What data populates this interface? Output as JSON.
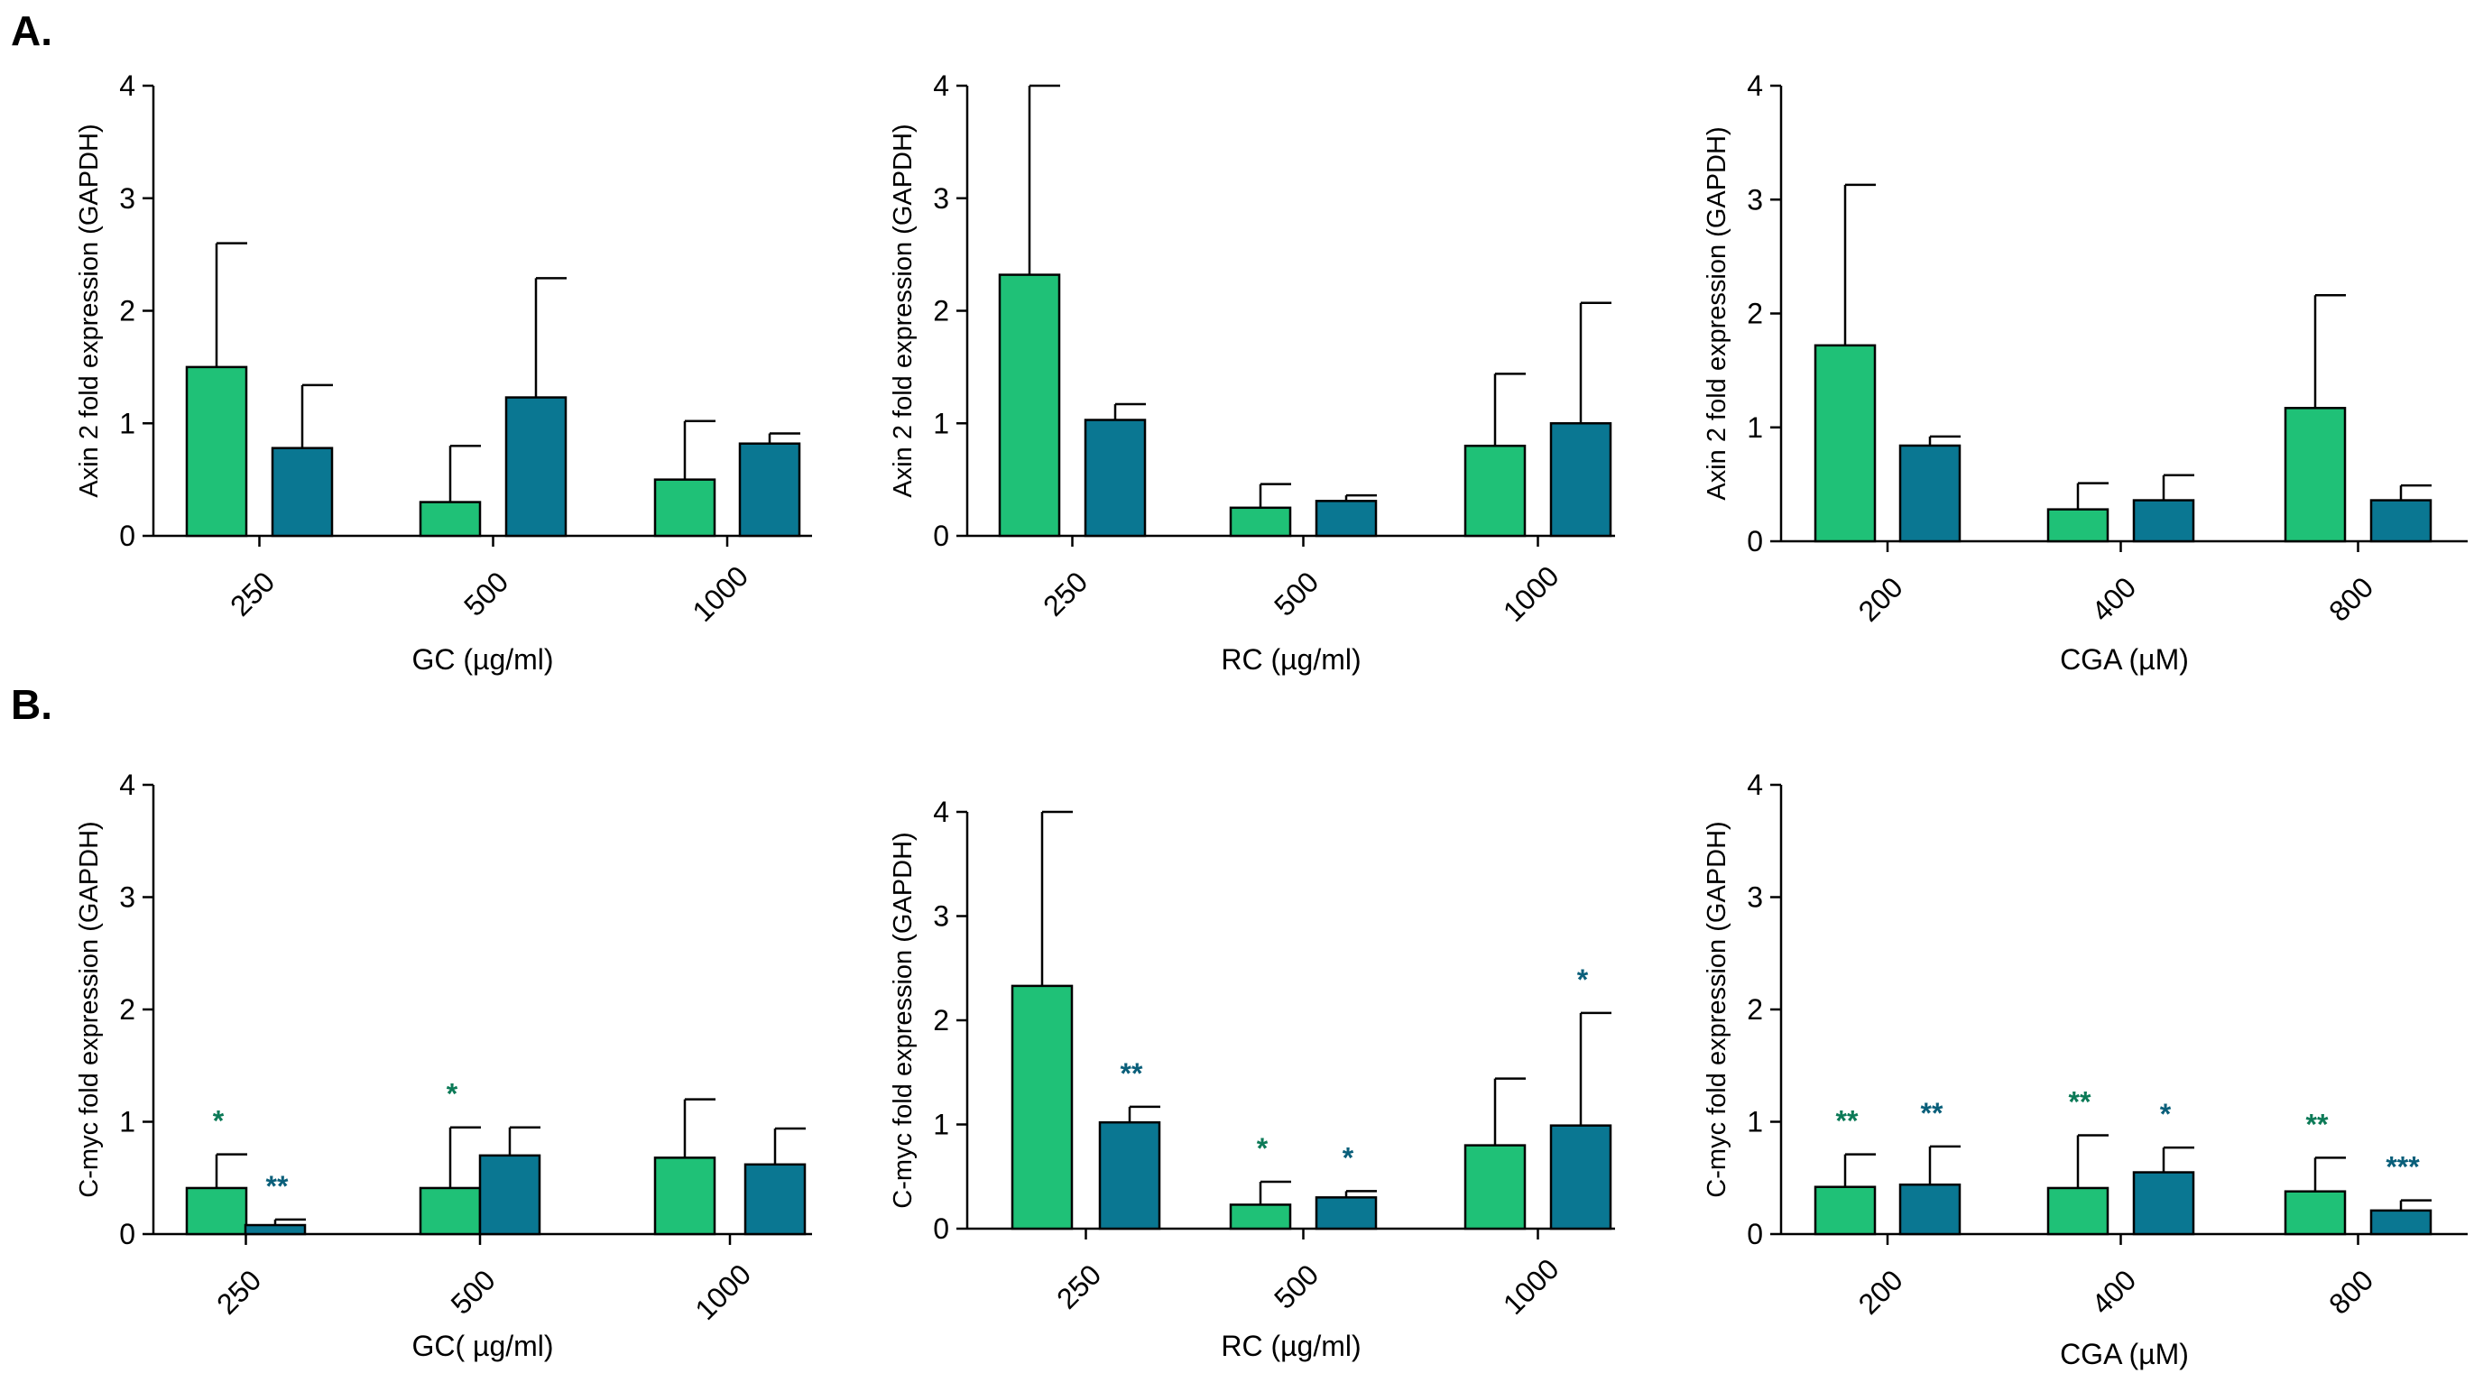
{
  "figure": {
    "section_a": "A.",
    "section_b": "B.",
    "colors": {
      "green": "#1fc177",
      "teal": "#0a7792",
      "sig_green": "#0c7a57",
      "sig_teal": "#0a5f7a"
    }
  },
  "chart_data": [
    {
      "id": "a1",
      "type": "bar",
      "section": "A",
      "ylabel": "Axin 2 fold expression (GAPDH)",
      "xlabel": "GC (µg/ml)",
      "ylim": [
        0,
        4
      ],
      "yticks": [
        "0",
        "1",
        "2",
        "3",
        "4"
      ],
      "categories": [
        "250",
        "500",
        "1000"
      ],
      "series": [
        {
          "name": "green",
          "values": [
            1.5,
            0.3,
            0.5
          ],
          "errors": [
            1.1,
            0.5,
            0.52
          ]
        },
        {
          "name": "teal",
          "values": [
            0.78,
            1.23,
            0.82
          ],
          "errors": [
            0.56,
            1.06,
            0.09
          ]
        }
      ]
    },
    {
      "id": "a2",
      "type": "bar",
      "section": "A",
      "ylabel": "Axin 2 fold expression (GAPDH)",
      "xlabel": "RC (µg/ml)",
      "ylim": [
        0,
        4
      ],
      "yticks": [
        "0",
        "1",
        "2",
        "3",
        "4"
      ],
      "categories": [
        "250",
        "500",
        "1000"
      ],
      "series": [
        {
          "name": "green",
          "values": [
            2.32,
            0.25,
            0.8
          ],
          "errors": [
            1.68,
            0.21,
            0.64
          ]
        },
        {
          "name": "teal",
          "values": [
            1.03,
            0.31,
            1.0
          ],
          "errors": [
            0.14,
            0.05,
            1.07
          ]
        }
      ]
    },
    {
      "id": "a3",
      "type": "bar",
      "section": "A",
      "ylabel": "Axin 2 fold expression (GAPDH)",
      "xlabel": "CGA (µM)",
      "ylim": [
        0,
        4
      ],
      "yticks": [
        "0",
        "1",
        "2",
        "3",
        "4"
      ],
      "categories": [
        "200",
        "400",
        "800"
      ],
      "series": [
        {
          "name": "green",
          "values": [
            1.72,
            0.28,
            1.17
          ],
          "errors": [
            1.41,
            0.23,
            0.99
          ]
        },
        {
          "name": "teal",
          "values": [
            0.84,
            0.36,
            0.36
          ],
          "errors": [
            0.08,
            0.22,
            0.13
          ]
        }
      ]
    },
    {
      "id": "b1",
      "type": "bar",
      "section": "B",
      "ylabel": "C-myc fold expression (GAPDH)",
      "xlabel": "GC( µg/ml)",
      "ylim": [
        0,
        4
      ],
      "yticks": [
        "0",
        "1",
        "2",
        "3",
        "4"
      ],
      "categories": [
        "250",
        "500",
        "1000"
      ],
      "series": [
        {
          "name": "green",
          "values": [
            0.41,
            0.41,
            0.68
          ],
          "errors": [
            0.3,
            0.54,
            0.52
          ],
          "significance": [
            "*",
            "*",
            ""
          ]
        },
        {
          "name": "teal",
          "values": [
            0.08,
            0.7,
            0.62
          ],
          "errors": [
            0.05,
            0.25,
            0.32
          ],
          "significance": [
            "**",
            "",
            ""
          ]
        }
      ]
    },
    {
      "id": "b2",
      "type": "bar",
      "section": "B",
      "ylabel": "C-myc fold expression (GAPDH)",
      "xlabel": "RC (µg/ml)",
      "ylim": [
        0,
        4
      ],
      "yticks": [
        "0",
        "1",
        "2",
        "3",
        "4"
      ],
      "categories": [
        "250",
        "500",
        "1000"
      ],
      "series": [
        {
          "name": "green",
          "values": [
            2.33,
            0.23,
            0.8
          ],
          "errors": [
            1.67,
            0.22,
            0.64
          ],
          "significance": [
            "",
            "*",
            ""
          ]
        },
        {
          "name": "teal",
          "values": [
            1.02,
            0.3,
            0.99
          ],
          "errors": [
            0.15,
            0.06,
            1.08
          ],
          "significance": [
            "**",
            "*",
            "*"
          ]
        }
      ]
    },
    {
      "id": "b3",
      "type": "bar",
      "section": "B",
      "ylabel": "C-myc fold expression (GAPDH)",
      "xlabel": "CGA (µM)",
      "ylim": [
        0,
        4
      ],
      "yticks": [
        "0",
        "1",
        "2",
        "3",
        "4"
      ],
      "categories": [
        "200",
        "400",
        "800"
      ],
      "series": [
        {
          "name": "green",
          "values": [
            0.42,
            0.41,
            0.38
          ],
          "errors": [
            0.29,
            0.47,
            0.3
          ],
          "significance": [
            "**",
            "**",
            "**"
          ]
        },
        {
          "name": "teal",
          "values": [
            0.44,
            0.55,
            0.21
          ],
          "errors": [
            0.34,
            0.22,
            0.09
          ],
          "significance": [
            "**",
            "*",
            "***"
          ]
        }
      ]
    }
  ]
}
